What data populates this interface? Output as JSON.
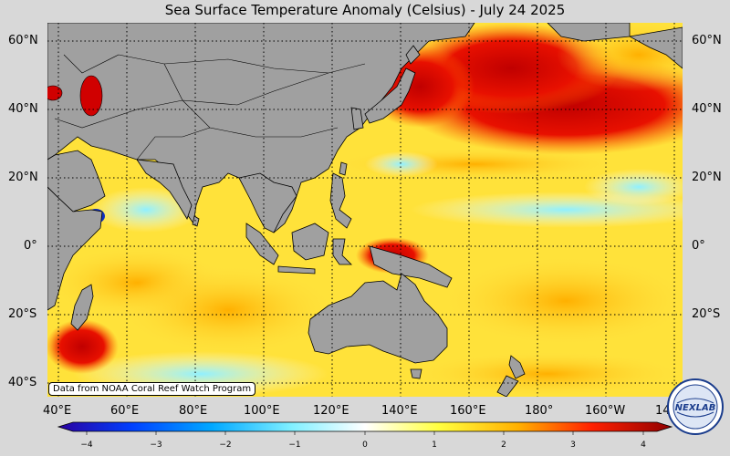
{
  "title": "Sea Surface Temperature Anomaly (Celsius) - July 24 2025",
  "credit": "Data from NOAA Coral Reef Watch Program",
  "logo_text": "NEXLAB",
  "lat_labels": [
    "60°N",
    "40°N",
    "20°N",
    "0°",
    "20°S",
    "40°S"
  ],
  "lon_labels": [
    "40°E",
    "60°E",
    "80°E",
    "100°E",
    "120°E",
    "140°E",
    "160°E",
    "180°",
    "160°W",
    "14"
  ],
  "colorbar": {
    "ticks": [
      "−4",
      "−3",
      "−2",
      "−1",
      "0",
      "1",
      "2",
      "3",
      "4"
    ],
    "range": [
      -4,
      4
    ],
    "colors": [
      "#2a00a0",
      "#0050ff",
      "#00a8ff",
      "#80e8ff",
      "#ffffff",
      "#ffff40",
      "#ffb000",
      "#ff2000",
      "#a00000"
    ]
  },
  "land_color": "#a0a0a0",
  "map_extent": {
    "lon": [
      35,
      220
    ],
    "lat": [
      -43,
      65
    ]
  }
}
